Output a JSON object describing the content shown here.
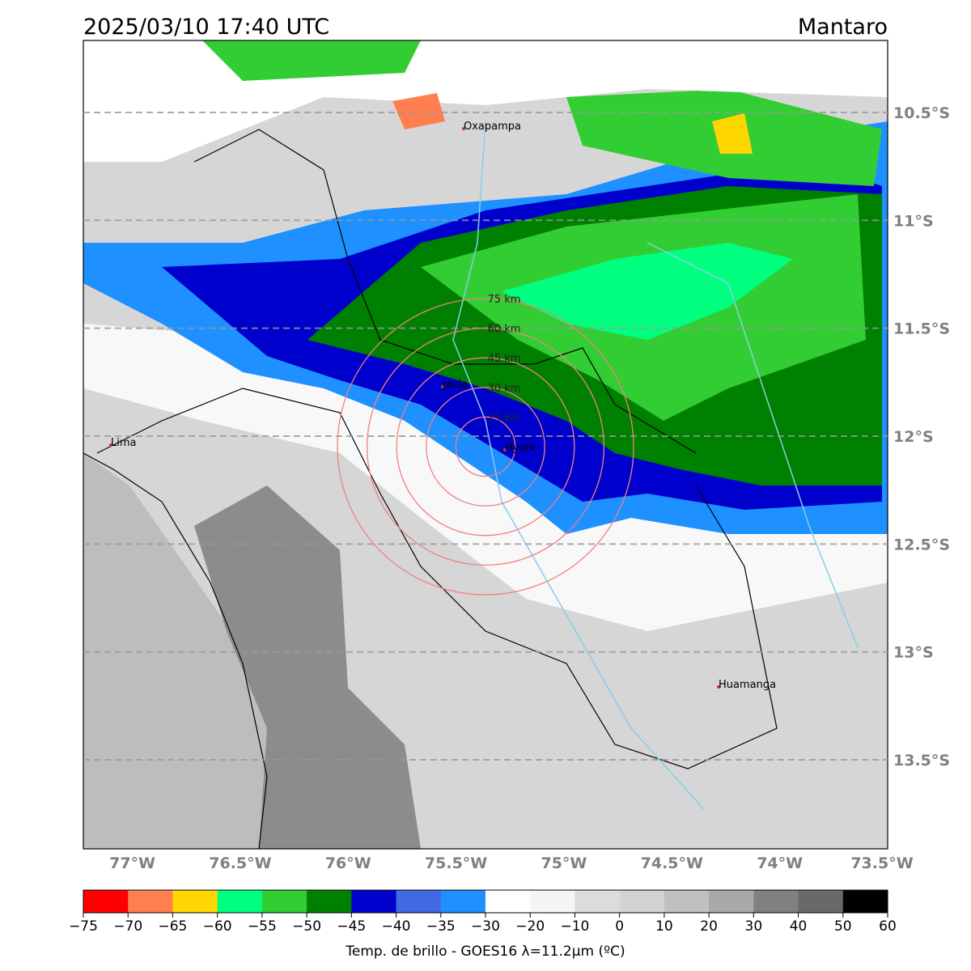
{
  "header": {
    "title": "2025/03/10 17:40 UTC",
    "region": "Mantaro"
  },
  "map": {
    "lon_ticks": [
      {
        "value": -77,
        "label": "77°W"
      },
      {
        "value": -76.5,
        "label": "76.5°W"
      },
      {
        "value": -76,
        "label": "76°W"
      },
      {
        "value": -75.5,
        "label": "75.5°W"
      },
      {
        "value": -75,
        "label": "75°W"
      },
      {
        "value": -74.5,
        "label": "74.5°W"
      },
      {
        "value": -74,
        "label": "74°W"
      },
      {
        "value": -73.5,
        "label": "73.5°W"
      }
    ],
    "lat_ticks": [
      {
        "value": -10.5,
        "label": "10.5°S"
      },
      {
        "value": -11,
        "label": "11°S"
      },
      {
        "value": -11.5,
        "label": "11.5°S"
      },
      {
        "value": -12,
        "label": "12°S"
      },
      {
        "value": -12.5,
        "label": "12.5°S"
      },
      {
        "value": -13,
        "label": "13°S"
      },
      {
        "value": -13.5,
        "label": "13.5°S"
      }
    ],
    "places": [
      "Oxapampa",
      "Lima",
      "Jauja",
      "Hyork",
      "Huamanga"
    ],
    "rings": [
      "15 km",
      "30 km",
      "45 km",
      "60 km",
      "75 km"
    ]
  },
  "colorbar": {
    "ticks": [
      "−75",
      "−70",
      "−65",
      "−60",
      "−55",
      "−50",
      "−45",
      "−40",
      "−35",
      "−30",
      "−20",
      "−10",
      "0",
      "10",
      "20",
      "30",
      "40",
      "50",
      "60"
    ],
    "colors": [
      "#ff0000",
      "#ff7f50",
      "#ffd700",
      "#00ff7f",
      "#32cd32",
      "#008000",
      "#0000cd",
      "#4169e1",
      "#1e90ff",
      "#ffffff",
      "#f5f5f5",
      "#dcdcdc",
      "#d3d3d3",
      "#c0c0c0",
      "#a9a9a9",
      "#808080",
      "#696969",
      "#000000"
    ],
    "label": "Temp. de brillo - GOES16 λ=11.2μm (ºC)"
  }
}
